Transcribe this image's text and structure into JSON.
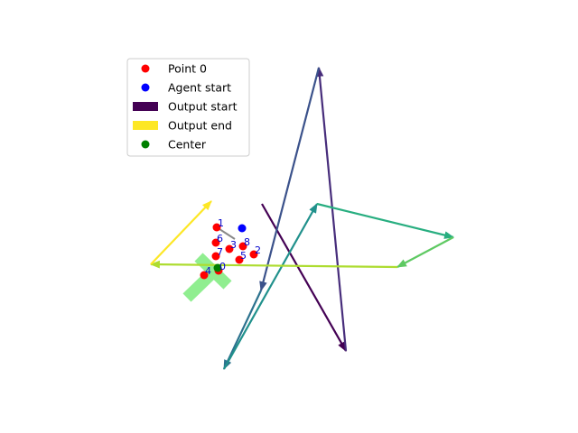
{
  "chart_data": {
    "type": "scatter",
    "title": "",
    "xlabel": "",
    "ylabel": "",
    "grid": false,
    "axes_visible": false,
    "legend": {
      "location": "upper-left",
      "entries": [
        {
          "label": "Point 0",
          "kind": "marker",
          "color": "#ff0000"
        },
        {
          "label": "Agent start",
          "kind": "marker",
          "color": "#0000ff"
        },
        {
          "label": "Output start",
          "kind": "patch",
          "color": "#440154"
        },
        {
          "label": "Output end",
          "kind": "patch",
          "color": "#fde725"
        },
        {
          "label": "Center",
          "kind": "marker",
          "color": "#008000"
        }
      ]
    },
    "points": [
      {
        "label": "0",
        "x": 242,
        "y": 300
      },
      {
        "label": "1",
        "x": 240,
        "y": 252
      },
      {
        "label": "2",
        "x": 281,
        "y": 282
      },
      {
        "label": "3",
        "x": 254,
        "y": 276
      },
      {
        "label": "4",
        "x": 226,
        "y": 305
      },
      {
        "label": "5",
        "x": 265,
        "y": 288
      },
      {
        "label": "6",
        "x": 239,
        "y": 269
      },
      {
        "label": "7",
        "x": 239,
        "y": 284
      },
      {
        "label": "8",
        "x": 269,
        "y": 273
      }
    ],
    "point_color": "#ff0000",
    "label_color": "#0000cc",
    "agent_start": {
      "x": 268,
      "y": 253,
      "color": "#0000ff"
    },
    "center": {
      "x": 241,
      "y": 297,
      "color": "#008000"
    },
    "gray_segment": [
      [
        240,
        252
      ],
      [
        260,
        265
      ]
    ],
    "cross": {
      "color": "#90ee90",
      "arms": [
        [
          [
            220,
            285
          ],
          [
            252,
            316
          ]
        ],
        [
          [
            239,
            299
          ],
          [
            207,
            330
          ]
        ]
      ]
    },
    "arrows": [
      {
        "from": [
          290,
          226
        ],
        "to": [
          383,
          389
        ],
        "color": "#440154"
      },
      {
        "from": [
          383,
          389
        ],
        "to": [
          353,
          75
        ],
        "color": "#472d7b"
      },
      {
        "from": [
          353,
          75
        ],
        "to": [
          289,
          322
        ],
        "color": "#3b528b"
      },
      {
        "from": [
          289,
          322
        ],
        "to": [
          248,
          409
        ],
        "color": "#2c728e"
      },
      {
        "from": [
          248,
          409
        ],
        "to": [
          351,
          226
        ],
        "color": "#21918c"
      },
      {
        "from": [
          351,
          226
        ],
        "to": [
          502,
          263
        ],
        "color": "#28ae80"
      },
      {
        "from": [
          502,
          263
        ],
        "to": [
          440,
          296
        ],
        "color": "#5ec962"
      },
      {
        "from": [
          440,
          296
        ],
        "to": [
          167,
          293
        ],
        "color": "#addc30"
      },
      {
        "from": [
          167,
          293
        ],
        "to": [
          234,
          223
        ],
        "color": "#fde725"
      }
    ]
  }
}
